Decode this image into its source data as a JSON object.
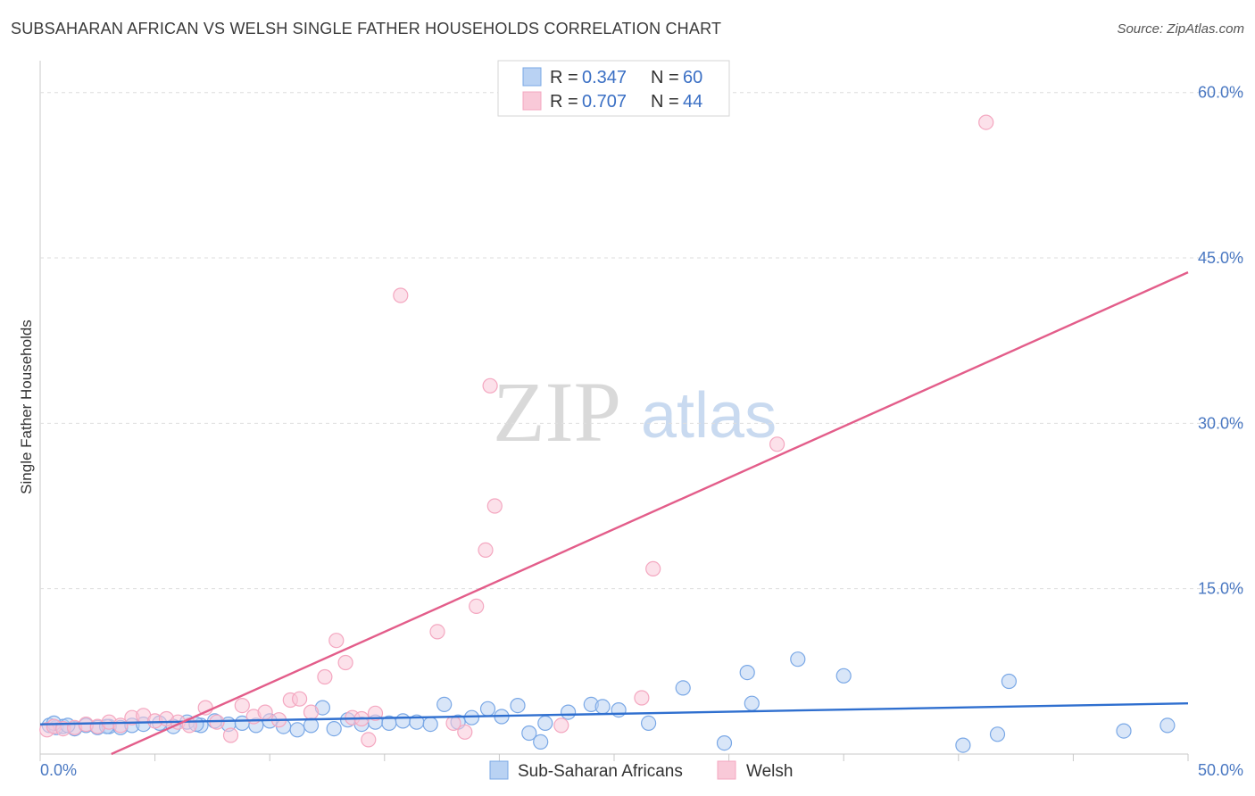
{
  "title": "SUBSAHARAN AFRICAN VS WELSH SINGLE FATHER HOUSEHOLDS CORRELATION CHART",
  "source": "Source: ZipAtlas.com",
  "watermark": {
    "zip": "ZIP",
    "atlas": "atlas"
  },
  "legend": {
    "r_label": "R =",
    "n_label": "N =",
    "rows": [
      {
        "series": "Sub-Saharan Africans",
        "r": "0.347",
        "n": "60"
      },
      {
        "series": "Welsh",
        "r": "0.707",
        "n": "44"
      }
    ]
  },
  "chart_data": {
    "type": "scatter",
    "title": "SUBSAHARAN AFRICAN VS WELSH SINGLE FATHER HOUSEHOLDS CORRELATION CHART",
    "xlabel": "",
    "ylabel": "Single Father Households",
    "xlim": [
      0,
      50
    ],
    "ylim": [
      0,
      62
    ],
    "x_tick_labels": [
      "0.0%",
      "50.0%"
    ],
    "y_ticks": [
      15,
      30,
      45,
      60
    ],
    "y_tick_labels": [
      "15.0%",
      "30.0%",
      "45.0%",
      "60.0%"
    ],
    "grid": true,
    "series": [
      {
        "name": "Sub-Saharan Africans",
        "color": "#7aa8e6",
        "fill": "#b9d2f3",
        "line_color": "#2f6fcf",
        "trend": [
          [
            0,
            2.7
          ],
          [
            50,
            4.6
          ]
        ],
        "points": [
          [
            0.4,
            2.6
          ],
          [
            0.7,
            2.4
          ],
          [
            1.0,
            2.5
          ],
          [
            1.5,
            2.3
          ],
          [
            2.0,
            2.6
          ],
          [
            2.5,
            2.4
          ],
          [
            3.0,
            2.5
          ],
          [
            3.5,
            2.4
          ],
          [
            4.0,
            2.6
          ],
          [
            4.5,
            2.7
          ],
          [
            5.2,
            2.8
          ],
          [
            5.8,
            2.5
          ],
          [
            6.4,
            2.9
          ],
          [
            7.0,
            2.6
          ],
          [
            7.6,
            3.0
          ],
          [
            8.2,
            2.7
          ],
          [
            8.8,
            2.8
          ],
          [
            9.4,
            2.6
          ],
          [
            10.0,
            3.0
          ],
          [
            10.6,
            2.5
          ],
          [
            11.2,
            2.2
          ],
          [
            11.8,
            2.6
          ],
          [
            12.3,
            4.2
          ],
          [
            12.8,
            2.3
          ],
          [
            13.4,
            3.1
          ],
          [
            14.0,
            2.7
          ],
          [
            14.6,
            2.9
          ],
          [
            15.2,
            2.8
          ],
          [
            15.8,
            3.0
          ],
          [
            16.4,
            2.9
          ],
          [
            17.0,
            2.7
          ],
          [
            17.6,
            4.5
          ],
          [
            18.2,
            2.9
          ],
          [
            18.8,
            3.3
          ],
          [
            19.5,
            4.1
          ],
          [
            20.1,
            3.4
          ],
          [
            20.8,
            4.4
          ],
          [
            21.3,
            1.9
          ],
          [
            21.8,
            1.1
          ],
          [
            22.0,
            2.8
          ],
          [
            23.0,
            3.8
          ],
          [
            24.0,
            4.5
          ],
          [
            24.5,
            4.3
          ],
          [
            25.2,
            4.0
          ],
          [
            26.5,
            2.8
          ],
          [
            28.0,
            6.0
          ],
          [
            29.8,
            1.0
          ],
          [
            30.8,
            7.4
          ],
          [
            31.0,
            4.6
          ],
          [
            33.0,
            8.6
          ],
          [
            35.0,
            7.1
          ],
          [
            40.2,
            0.8
          ],
          [
            41.7,
            1.8
          ],
          [
            42.2,
            6.6
          ],
          [
            47.2,
            2.1
          ],
          [
            49.1,
            2.6
          ],
          [
            0.6,
            2.8
          ],
          [
            1.2,
            2.6
          ],
          [
            2.9,
            2.5
          ],
          [
            6.8,
            2.7
          ]
        ]
      },
      {
        "name": "Welsh",
        "color": "#f4a7c0",
        "fill": "#f9c9d8",
        "line_color": "#e35d8a",
        "trend": [
          [
            3.1,
            0.0
          ],
          [
            50,
            43.7
          ]
        ],
        "points": [
          [
            0.3,
            2.2
          ],
          [
            0.6,
            2.5
          ],
          [
            1.0,
            2.3
          ],
          [
            1.5,
            2.4
          ],
          [
            2.0,
            2.7
          ],
          [
            2.5,
            2.5
          ],
          [
            3.0,
            2.9
          ],
          [
            3.5,
            2.6
          ],
          [
            4.0,
            3.3
          ],
          [
            4.5,
            3.5
          ],
          [
            5.0,
            3.0
          ],
          [
            5.5,
            3.2
          ],
          [
            6.0,
            2.9
          ],
          [
            6.5,
            2.6
          ],
          [
            7.2,
            4.2
          ],
          [
            7.7,
            2.9
          ],
          [
            8.3,
            1.7
          ],
          [
            8.8,
            4.4
          ],
          [
            9.3,
            3.4
          ],
          [
            9.8,
            3.8
          ],
          [
            10.4,
            3.1
          ],
          [
            10.9,
            4.9
          ],
          [
            11.3,
            5.0
          ],
          [
            11.8,
            3.8
          ],
          [
            12.4,
            7.0
          ],
          [
            12.9,
            10.3
          ],
          [
            13.3,
            8.3
          ],
          [
            13.6,
            3.3
          ],
          [
            14.0,
            3.2
          ],
          [
            14.3,
            1.3
          ],
          [
            14.6,
            3.7
          ],
          [
            15.7,
            41.6
          ],
          [
            17.3,
            11.1
          ],
          [
            18.0,
            2.8
          ],
          [
            18.5,
            2.0
          ],
          [
            19.0,
            13.4
          ],
          [
            19.4,
            18.5
          ],
          [
            19.6,
            33.4
          ],
          [
            19.8,
            22.5
          ],
          [
            22.7,
            2.6
          ],
          [
            26.2,
            5.1
          ],
          [
            26.7,
            16.8
          ],
          [
            32.1,
            28.1
          ],
          [
            41.2,
            57.3
          ]
        ]
      }
    ]
  }
}
